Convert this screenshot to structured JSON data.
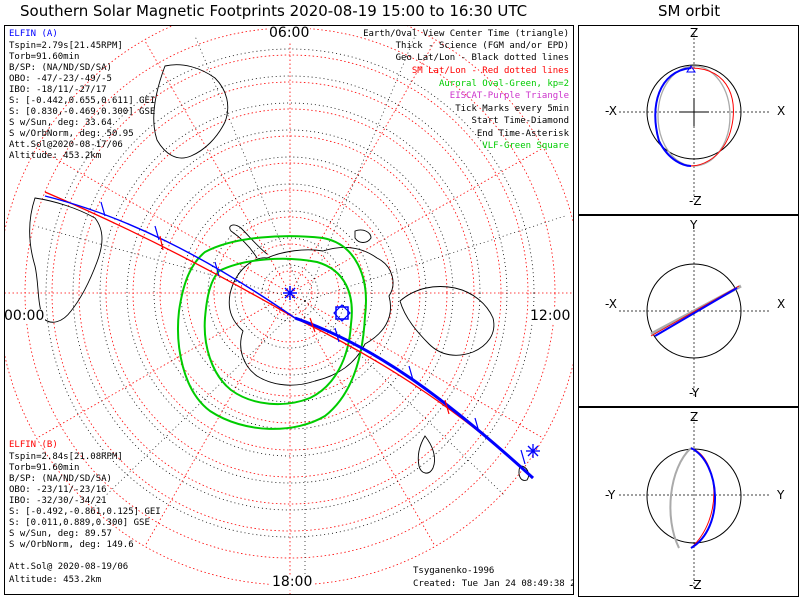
{
  "title": "Southern Solar Magnetic Footprints 2020-08-19 15:00 to 16:30 UTC",
  "orbit_title": "SM orbit",
  "clock_labels": {
    "top": "06:00",
    "left": "00:00",
    "right": "12:00",
    "bottom": "18:00"
  },
  "elfin_a": {
    "name": "ELFIN (A)",
    "lines": [
      "Tspin=2.79s[21.45RPM]",
      "Torb=91.60min",
      "B/SP: (NA/ND/SD/SA)",
      "OBO: -47/-23/-49/-5",
      "IBO: -18/11/-27/17",
      "S: [-0.442,0.655,0.611] GEI",
      "S: [0.830,-0.469,0.300] GSE",
      "S w/Sun, deg: 33.64",
      "S w/OrbNorm, deg: 50.95",
      "Att.Sol@2020-08-17/06",
      "Altitude: 453.2km"
    ]
  },
  "elfin_b": {
    "name": "ELFIN (B)",
    "lines": [
      "Tspin=2.84s[21.08RPM]",
      "Torb=91.60min",
      "B/SP: (NA/ND/SD/SA)",
      "OBO: -23/11/-23/16",
      "IBO: -32/30/-34/21",
      "S: [-0.492,-0.861,0.125] GEI",
      "S: [0.011,0.889,0.300] GSE",
      "S w/Sun, deg: 89.57",
      "S w/OrbNorm, deg: 149.6",
      "Att.Sol@ 2020-08-19/06",
      "Altitude: 453.2km"
    ]
  },
  "legend": [
    {
      "text": "Earth/Oval View Center Time (triangle)",
      "color": "#000000"
    },
    {
      "text": "Thick - Science (FGM and/or EPD)",
      "color": "#000000"
    },
    {
      "text": "Geo Lat/Lon - Black dotted lines",
      "color": "#000000"
    },
    {
      "text": "SM Lat/Lon - Red dotted lines",
      "color": "#ff0000"
    },
    {
      "text": "Auroral Oval-Green, kp=2",
      "color": "#00cc00"
    },
    {
      "text": "EISCAT-Purple Triangle",
      "color": "#cc33cc"
    },
    {
      "text": "Tick Marks every 5min",
      "color": "#000000"
    },
    {
      "text": "Start Time-Diamond",
      "color": "#000000"
    },
    {
      "text": "End Time-Asterisk",
      "color": "#000000"
    },
    {
      "text": "VLF-Green Square",
      "color": "#00cc00"
    }
  ],
  "credits": [
    "Tsyganenko-1996",
    "Created: Tue Jan 24 08:49:38 2023"
  ],
  "panels": [
    {
      "top": "Z",
      "bottom": "-Z",
      "left": "-X",
      "right": "X"
    },
    {
      "top": "Y",
      "bottom": "-Y",
      "left": "-X",
      "right": "X"
    },
    {
      "top": "Z",
      "bottom": "-Z",
      "left": "-Y",
      "right": "Y"
    }
  ],
  "colors": {
    "elfin_a": "#0000ff",
    "elfin_b": "#ff0000",
    "oval": "#00cc00",
    "grid_sm": "#ff0000",
    "grid_geo": "#000000"
  }
}
